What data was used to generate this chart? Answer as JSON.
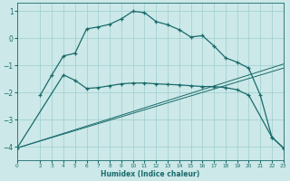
{
  "xlabel": "Humidex (Indice chaleur)",
  "bg_color": "#cce8e8",
  "line_color": "#1a6b6b",
  "grid_color": "#9ecece",
  "x_min": 0,
  "x_max": 23,
  "y_min": -4.5,
  "y_max": 1.3,
  "x_ticks": [
    0,
    2,
    3,
    4,
    5,
    6,
    7,
    8,
    9,
    10,
    11,
    12,
    13,
    14,
    15,
    16,
    17,
    18,
    19,
    20,
    21,
    22,
    23
  ],
  "y_ticks": [
    -4,
    -3,
    -2,
    -1,
    0,
    1
  ],
  "curve1_x": [
    2,
    3,
    4,
    5,
    6,
    7,
    8,
    9,
    10,
    11,
    12,
    13,
    14,
    15,
    16,
    17,
    18,
    19,
    20,
    21,
    22,
    23
  ],
  "curve1_y": [
    -2.1,
    -1.35,
    -0.65,
    -0.55,
    0.35,
    0.42,
    0.52,
    0.72,
    1.0,
    0.95,
    0.62,
    0.5,
    0.32,
    0.05,
    0.1,
    -0.28,
    -0.72,
    -0.88,
    -1.1,
    -2.1,
    -3.65,
    -4.05
  ],
  "curve2_x": [
    0,
    4,
    5,
    6,
    7,
    8,
    9,
    10,
    11,
    12,
    13,
    14,
    15,
    16,
    17,
    18,
    19,
    20,
    22,
    23
  ],
  "curve2_y": [
    -4.05,
    -1.35,
    -1.55,
    -1.85,
    -1.82,
    -1.75,
    -1.68,
    -1.65,
    -1.65,
    -1.68,
    -1.7,
    -1.72,
    -1.75,
    -1.78,
    -1.78,
    -1.82,
    -1.9,
    -2.1,
    -3.65,
    -4.05
  ],
  "curve3_x": [
    0,
    23
  ],
  "curve3_y": [
    -4.05,
    -1.1
  ],
  "curve4_x": [
    0,
    23
  ],
  "curve4_y": [
    -4.05,
    -0.95
  ]
}
